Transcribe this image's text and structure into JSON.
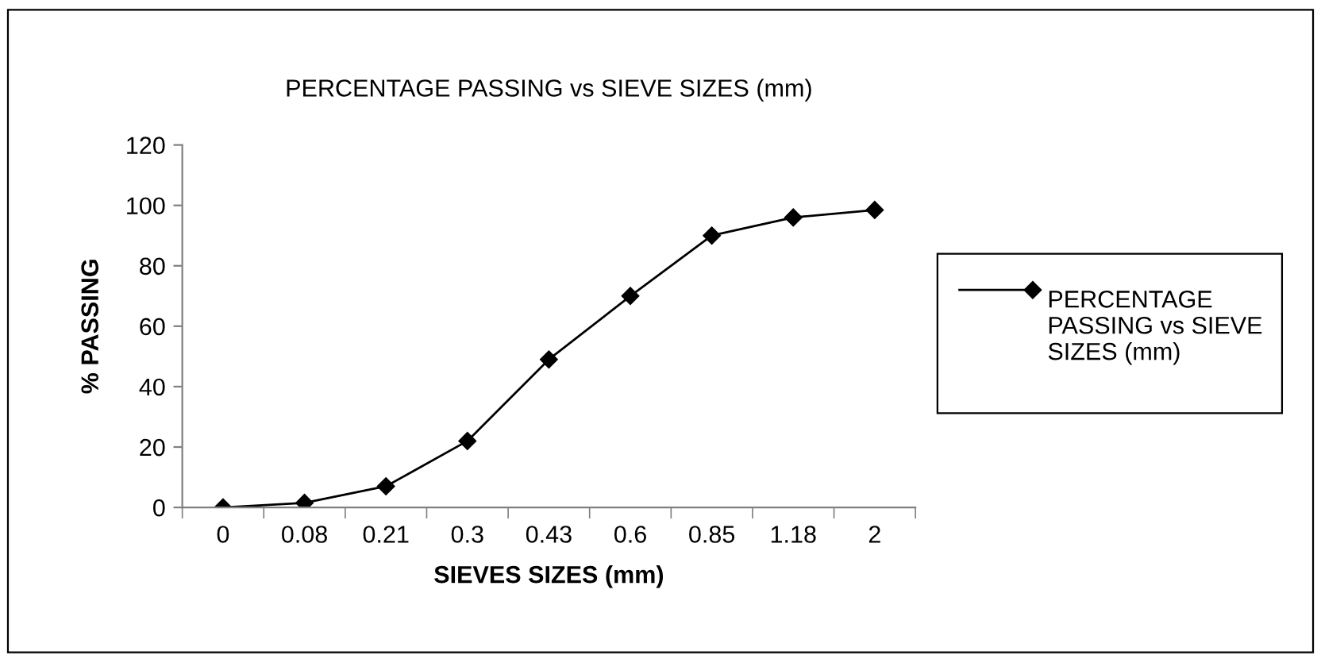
{
  "chart_data": {
    "type": "line",
    "title": "PERCENTAGE PASSING vs SIEVE SIZES (mm)",
    "xlabel": "SIEVES SIZES (mm)",
    "ylabel": "% PASSING",
    "categories": [
      "0",
      "0.08",
      "0.21",
      "0.3",
      "0.43",
      "0.6",
      "0.85",
      "1.18",
      "2"
    ],
    "series": [
      {
        "name": "PERCENTAGE PASSING vs SIEVE SIZES (mm)",
        "color": "#000000",
        "values": [
          0,
          1.5,
          7,
          22,
          49,
          70,
          90,
          96,
          98.5
        ]
      }
    ],
    "ylim": [
      0,
      120
    ],
    "yticks": [
      0,
      20,
      40,
      60,
      80,
      100,
      120
    ],
    "grid": false,
    "legend": "right",
    "marker": "diamond",
    "line_style": "solid"
  }
}
